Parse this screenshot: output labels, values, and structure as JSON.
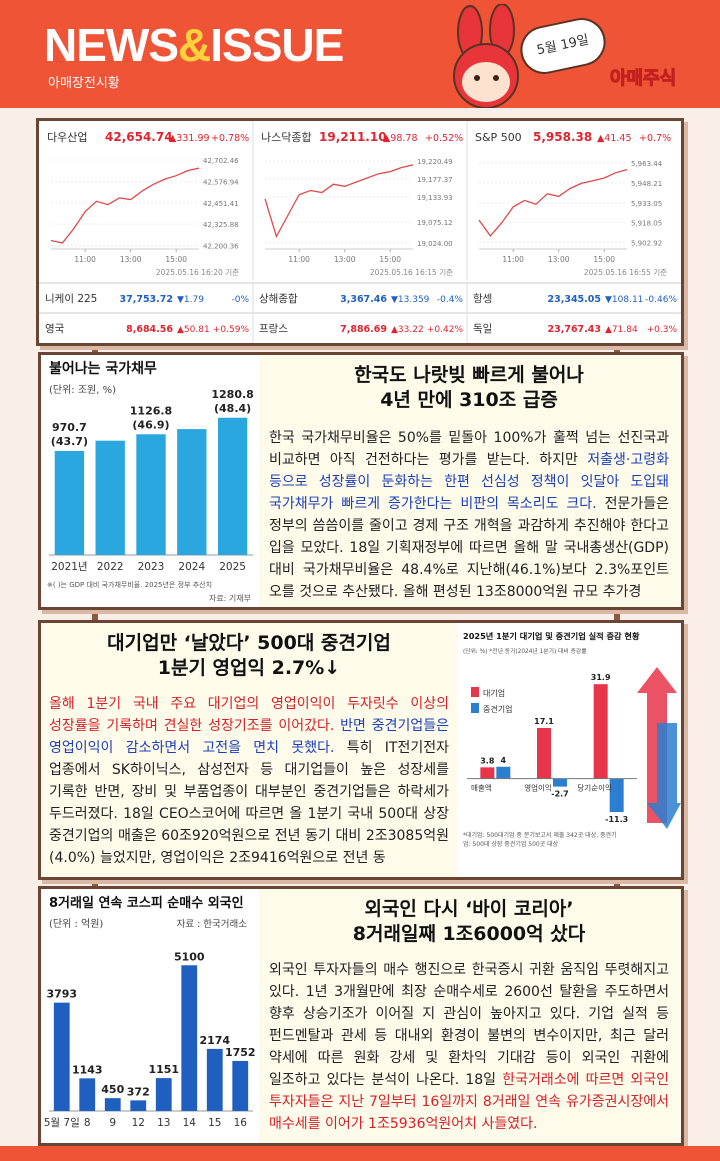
{
  "header": {
    "title_news": "NEWS",
    "title_amp": "&",
    "title_issue": "ISSUE",
    "subtitle": "아매장전시황",
    "date": "5월 19일",
    "brand": "아매주식"
  },
  "markets": {
    "indices": [
      {
        "name": "다우산업",
        "value": "42,654.74",
        "change": "▲331.99",
        "pct": "+0.78%",
        "color": "#e0242f",
        "timestamp": "2025.05.16 16:20 기준",
        "chart": {
          "type": "line",
          "color": "#e04848",
          "x": [
            9.5,
            10,
            10.5,
            11,
            11.5,
            12,
            12.5,
            13,
            13.5,
            14,
            14.5,
            15,
            15.5,
            16
          ],
          "values": [
            42230,
            42215,
            42300,
            42400,
            42460,
            42440,
            42480,
            42470,
            42520,
            42560,
            42590,
            42610,
            42640,
            42654.74
          ],
          "xlim": [
            9.5,
            16
          ],
          "xticks": [
            {
              "value": 11,
              "label": "11:00"
            },
            {
              "value": 13,
              "label": "13:00"
            },
            {
              "value": 15,
              "label": "15:00"
            }
          ],
          "ylim": [
            42180,
            42720
          ],
          "yticks": [
            {
              "value": 42702.46,
              "label": "42,702.46"
            },
            {
              "value": 42576.94,
              "label": "42,576.94"
            },
            {
              "value": 42451.41,
              "label": "42,451.41"
            },
            {
              "value": 42325.88,
              "label": "42,325.88"
            },
            {
              "value": 42200.36,
              "label": "42,200.36"
            }
          ]
        }
      },
      {
        "name": "나스닥종합",
        "value": "19,211.10",
        "change": "▲98.78",
        "pct": "+0.52%",
        "color": "#e0242f",
        "timestamp": "2025.05.16 16:15 기준",
        "chart": {
          "type": "line",
          "color": "#e04848",
          "x": [
            9.5,
            10,
            10.5,
            11,
            11.5,
            12,
            12.5,
            13,
            13.5,
            14,
            14.5,
            15,
            15.5,
            16
          ],
          "values": [
            19130,
            19040,
            19090,
            19140,
            19150,
            19145,
            19165,
            19160,
            19170,
            19180,
            19190,
            19195,
            19205,
            19211.1
          ],
          "xlim": [
            9.5,
            16
          ],
          "xticks": [
            {
              "value": 11,
              "label": "11:00"
            },
            {
              "value": 13,
              "label": "13:00"
            },
            {
              "value": 15,
              "label": "15:00"
            }
          ],
          "ylim": [
            19010,
            19230
          ],
          "yticks": [
            {
              "value": 19220.49,
              "label": "19,220.49"
            },
            {
              "value": 19177.37,
              "label": "19,177.37"
            },
            {
              "value": 19133.93,
              "label": "19,133.93"
            },
            {
              "value": 19075.12,
              "label": "19,075.12"
            },
            {
              "value": 19024.0,
              "label": "19,024.00"
            }
          ]
        }
      },
      {
        "name": "S&P 500",
        "value": "5,958.38",
        "change": "▲41.45",
        "pct": "+0.7%",
        "color": "#e0242f",
        "timestamp": "2025.05.16 16:55 기준",
        "chart": {
          "type": "line",
          "color": "#e04848",
          "x": [
            9.5,
            10,
            10.5,
            11,
            11.5,
            12,
            12.5,
            13,
            13.5,
            14,
            14.5,
            15,
            15.5,
            16
          ],
          "values": [
            5920,
            5908,
            5918,
            5930,
            5935,
            5932,
            5940,
            5938,
            5944,
            5948,
            5950,
            5952,
            5956,
            5958.38
          ],
          "xlim": [
            9.5,
            16
          ],
          "xticks": [
            {
              "value": 11,
              "label": "11:00"
            },
            {
              "value": 13,
              "label": "13:00"
            },
            {
              "value": 15,
              "label": "15:00"
            }
          ],
          "ylim": [
            5898,
            5968
          ],
          "yticks": [
            {
              "value": 5963.44,
              "label": "5,963.44"
            },
            {
              "value": 5948.21,
              "label": "5,948.21"
            },
            {
              "value": 5933.05,
              "label": "5,933.05"
            },
            {
              "value": 5918.05,
              "label": "5,918.05"
            },
            {
              "value": 5902.92,
              "label": "5,902.92"
            }
          ]
        }
      }
    ],
    "others": [
      {
        "name": "니케이 225",
        "value": "37,753.72",
        "change": "▼1.79",
        "pct": "-0%",
        "color": "#1f5fc4"
      },
      {
        "name": "상해종합",
        "value": "3,367.46",
        "change": "▼13.359",
        "pct": "-0.4%",
        "color": "#1f5fc4"
      },
      {
        "name": "항셍",
        "value": "23,345.05",
        "change": "▼108.11",
        "pct": "-0.46%",
        "color": "#1f5fc4"
      },
      {
        "name": "영국",
        "value": "8,684.56",
        "change": "▲50.81",
        "pct": "+0.59%",
        "color": "#e0242f"
      },
      {
        "name": "프랑스",
        "value": "7,886.69",
        "change": "▲33.22",
        "pct": "+0.42%",
        "color": "#e0242f"
      },
      {
        "name": "독일",
        "value": "23,767.43",
        "change": "▲71.84",
        "pct": "+0.3%",
        "color": "#e0242f"
      }
    ]
  },
  "sections": [
    {
      "headline": [
        "한국도 나랏빚 빠르게 불어나",
        "4년 만에 310조 급증"
      ],
      "body": [
        {
          "text": "한국 국가채무비율은 50%를 밑돌아 100%가 훌쩍 넘는 선진국과 비교하면 아직 건전하다는 평가를 받는다. 하지만 ",
          "color": "#222222"
        },
        {
          "text": "저출생·고령화 등으로 성장률이 둔화하는 한편 선심성 정책이 잇달아 도입돼 국가채무가 빠르게 증가한다는 비판의 목소리도 크다.",
          "color": "#1b3fb8"
        },
        {
          "text": " 전문가들은 정부의 씀씀이를 줄이고 경제 구조 개혁을 과감하게 추진해야 한다고 입을 모았다. 18일 기획재정부에 따르면 올해 말 국내총생산(GDP) 대비 국가채무비율은 48.4%로 지난해(46.1%)보다 2.3%포인트 오를 것으로 추산됐다. 올해 편성된 13조8000억원 규모 추가경",
          "color": "#222222"
        }
      ],
      "chart": {
        "type": "bar",
        "title": "불어나는 국가채무",
        "unit": "(단위: 조원, %)",
        "color": "#2aa7df",
        "categories": [
          "2021년",
          "2022",
          "2023",
          "2024",
          "2025"
        ],
        "values": [
          970.7,
          1067,
          1126.8,
          1175,
          1280.8
        ],
        "value_labels": [
          "970.7",
          null,
          "1126.8",
          null,
          "1280.8"
        ],
        "ratio_labels": [
          "(43.7)",
          null,
          "(46.9)",
          null,
          "(48.4)"
        ],
        "ylim": [
          0,
          1400
        ],
        "note": "※( )는 GDP 대비 국가채무비율. 2025년은 정부 추산치",
        "source": "자료: 기재부"
      }
    },
    {
      "headline": [
        "대기업만 ‘날았다’ 500대 중견기업",
        "1분기 영업익 2.7%↓"
      ],
      "body": [
        {
          "text": "올해 1분기 국내 주요 대기업의 영업이익이 두자릿수 이상의 성장률을 기록하며 견실한 성장기조를 이어갔다.",
          "color": "#d6202a"
        },
        {
          "text": " 반면 중견기업들은 영업이익이 감소하면서 고전을 면치 못했다.",
          "color": "#1b3fb8"
        },
        {
          "text": " 특히 IT전기전자 업종에서 SK하이닉스, 삼성전자 등 대기업들이 높은 성장세를 기록한 반면, 장비 및 부품업종이 대부분인 중견기업들은 하락세가 두드러졌다. 18일 CEO스코어에 따르면 올 1분기 국내 500대 상장 중견기업의 매출은 60조920억원으로 전년 동기 대비 2조3085억원(4.0%) 늘었지만, 영업이익은 2조9416억원으로 전년 동",
          "color": "#222222"
        }
      ],
      "chart": {
        "type": "grouped-bar",
        "title": "2025년 1분기 대기업 및 중견기업 실적 증감 현황",
        "unit": "(단위: %) *전년 동기(2024년 1분기) 대비 증감률",
        "categories": [
          "매출액",
          "영업이익",
          "당기순이익"
        ],
        "series": [
          {
            "name": "대기업",
            "color": "#e8354a",
            "values": [
              3.8,
              17.1,
              31.9
            ]
          },
          {
            "name": "중견기업",
            "color": "#2a7fd1",
            "values": [
              4.0,
              -2.7,
              -11.3
            ]
          }
        ],
        "ylim": [
          -15,
          35
        ],
        "note": "*대기업: 500대기업 중 분기보고서 제출 342곳 대상, 중견기업: 500대 상장 중견기업 500곳 대상"
      }
    },
    {
      "headline": [
        "외국인 다시 ‘바이 코리아’",
        "8거래일째 1조6000억 샀다"
      ],
      "body": [
        {
          "text": "외국인 투자자들의 매수 행진으로 한국증시 귀환 움직임 뚜렷해지고 있다. 1년 3개월만에 최장 순매수세로 2600선 탈환을 주도하면서 향후 상승기조가 이어질 지 관심이 높아지고 있다. 기업 실적 등 펀드멘탈과 관세 등 대내외 환경이 불변의 변수이지만, 최근 달러 약세에 따른 원화 강세 및 환차익 기대감 등이 외국인 귀환에 일조하고 있다는 분석이 나온다. 18일 ",
          "color": "#222222"
        },
        {
          "text": "한국거래소에 따르면 외국인 투자자들은 지난 7일부터 16일까지 8거래일 연속 유가증권시장에서 매수세를 이어가 1조5936억원어치 사들였다.",
          "color": "#d6202a"
        }
      ],
      "chart": {
        "type": "bar",
        "title": "8거래일 연속 코스피 순매수 외국인",
        "unit": "(단위 : 억원)",
        "source": "자료 : 한국거래소",
        "color": "#1f5fbf",
        "categories": [
          "5월 7일",
          "8",
          "9",
          "12",
          "13",
          "14",
          "15",
          "16"
        ],
        "values": [
          3793,
          1143,
          450,
          372,
          1151,
          5100,
          2174,
          1752
        ],
        "ylim": [
          0,
          5600
        ]
      }
    }
  ]
}
